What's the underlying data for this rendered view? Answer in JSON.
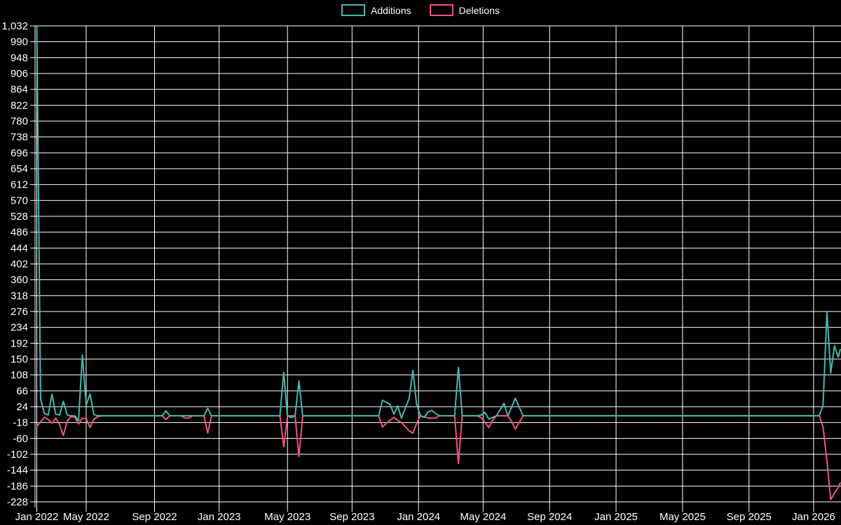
{
  "legend": [
    {
      "label": "Additions",
      "color": "#44b9ae"
    },
    {
      "label": "Deletions",
      "color": "#f2547c"
    }
  ],
  "colors": {
    "background": "#000000",
    "grid": "#ffffff",
    "text": "#ffffff",
    "additions": "#44b9ae",
    "deletions": "#f2547c"
  },
  "chart_data": {
    "type": "line",
    "title": "",
    "xlabel": "",
    "ylabel": "",
    "legend_position": "top-center",
    "grid": true,
    "x_axis": {
      "unit": "weeks",
      "ticks": [
        {
          "label": "Jan 2022",
          "week": 0
        },
        {
          "label": "May 2022",
          "week": 13
        },
        {
          "label": "Sep 2022",
          "week": 31
        },
        {
          "label": "Jan 2023",
          "week": 48
        },
        {
          "label": "May 2023",
          "week": 66
        },
        {
          "label": "Sep 2023",
          "week": 83
        },
        {
          "label": "Jan 2024",
          "week": 100.5
        },
        {
          "label": "May 2024",
          "week": 117.5
        },
        {
          "label": "Sep 2024",
          "week": 135
        },
        {
          "label": "Jan 2025",
          "week": 152.5
        },
        {
          "label": "May 2025",
          "week": 170
        },
        {
          "label": "Sep 2025",
          "week": 187.5
        },
        {
          "label": "Jan 2026",
          "week": 204.5
        }
      ],
      "weeks_total": 211.5
    },
    "y_axis": {
      "min": -228,
      "max": 1032,
      "tick_step": 42,
      "ticks": [
        1032,
        990,
        948,
        906,
        864,
        822,
        780,
        738,
        696,
        654,
        612,
        570,
        528,
        486,
        444,
        402,
        360,
        318,
        276,
        234,
        192,
        150,
        108,
        66,
        24,
        -18,
        -60,
        -102,
        -144,
        -186,
        -228
      ]
    },
    "baseline_value": 0,
    "series": [
      {
        "name": "Additions",
        "color": "#44b9ae",
        "points": [
          [
            0,
            1032
          ],
          [
            1,
            45
          ],
          [
            2,
            6
          ],
          [
            3,
            2
          ],
          [
            4,
            57
          ],
          [
            5,
            4
          ],
          [
            6,
            2
          ],
          [
            7,
            38
          ],
          [
            8,
            2
          ],
          [
            9,
            0
          ],
          [
            10,
            0
          ],
          [
            11,
            -13
          ],
          [
            12,
            161
          ],
          [
            13,
            28
          ],
          [
            14,
            58
          ],
          [
            15,
            4
          ],
          [
            16,
            0
          ],
          [
            33,
            0
          ],
          [
            34,
            13
          ],
          [
            35,
            0
          ],
          [
            44,
            0
          ],
          [
            45,
            20
          ],
          [
            46,
            0
          ],
          [
            64,
            0
          ],
          [
            65,
            115
          ],
          [
            66,
            0
          ],
          [
            67,
            -5
          ],
          [
            68,
            0
          ],
          [
            69,
            92
          ],
          [
            70,
            0
          ],
          [
            90,
            0
          ],
          [
            91,
            41
          ],
          [
            93,
            30
          ],
          [
            94,
            4
          ],
          [
            95,
            26
          ],
          [
            96,
            -6
          ],
          [
            97,
            20
          ],
          [
            98,
            45
          ],
          [
            99,
            120
          ],
          [
            100,
            30
          ],
          [
            101,
            0
          ],
          [
            102,
            -4
          ],
          [
            103,
            10
          ],
          [
            104,
            14
          ],
          [
            105,
            6
          ],
          [
            106,
            0
          ],
          [
            110,
            0
          ],
          [
            111,
            128
          ],
          [
            112,
            0
          ],
          [
            116,
            0
          ],
          [
            117,
            2
          ],
          [
            118,
            9
          ],
          [
            119,
            -9
          ],
          [
            121,
            0
          ],
          [
            123,
            33
          ],
          [
            124,
            0
          ],
          [
            126,
            46
          ],
          [
            128,
            0
          ],
          [
            206,
            0
          ],
          [
            207,
            28
          ],
          [
            208,
            276
          ],
          [
            209,
            113
          ],
          [
            210,
            185
          ],
          [
            211,
            155
          ],
          [
            211.5,
            175
          ]
        ]
      },
      {
        "name": "Deletions",
        "color": "#f2547c",
        "points": [
          [
            0,
            -28
          ],
          [
            1,
            -16
          ],
          [
            2,
            -4
          ],
          [
            3,
            -10
          ],
          [
            4,
            -20
          ],
          [
            5,
            -6
          ],
          [
            6,
            -24
          ],
          [
            7,
            -52
          ],
          [
            8,
            -14
          ],
          [
            9,
            -2
          ],
          [
            10,
            -4
          ],
          [
            11,
            -22
          ],
          [
            12,
            -6
          ],
          [
            13,
            -8
          ],
          [
            14,
            -31
          ],
          [
            15,
            -10
          ],
          [
            16,
            -2
          ],
          [
            17,
            0
          ],
          [
            33,
            0
          ],
          [
            34,
            -10
          ],
          [
            35,
            0
          ],
          [
            38,
            0
          ],
          [
            39,
            -6
          ],
          [
            40,
            -6
          ],
          [
            41,
            0
          ],
          [
            44,
            0
          ],
          [
            45,
            -46
          ],
          [
            46,
            0
          ],
          [
            64,
            0
          ],
          [
            65,
            -82
          ],
          [
            66,
            0
          ],
          [
            68,
            0
          ],
          [
            69,
            -108
          ],
          [
            70,
            0
          ],
          [
            90,
            0
          ],
          [
            91,
            -30
          ],
          [
            92,
            -20
          ],
          [
            93,
            -12
          ],
          [
            94,
            -4
          ],
          [
            95,
            -12
          ],
          [
            96,
            -18
          ],
          [
            98,
            -40
          ],
          [
            99,
            -46
          ],
          [
            100,
            -20
          ],
          [
            101,
            0
          ],
          [
            103,
            -6
          ],
          [
            105,
            -6
          ],
          [
            106,
            0
          ],
          [
            110,
            0
          ],
          [
            111,
            -126
          ],
          [
            112,
            0
          ],
          [
            116,
            0
          ],
          [
            117,
            -5
          ],
          [
            118,
            -18
          ],
          [
            119,
            -31
          ],
          [
            120,
            -12
          ],
          [
            121,
            0
          ],
          [
            124,
            0
          ],
          [
            125,
            -15
          ],
          [
            126,
            -35
          ],
          [
            128,
            0
          ],
          [
            206,
            0
          ],
          [
            207,
            -30
          ],
          [
            208,
            -120
          ],
          [
            209,
            -222
          ],
          [
            210,
            -205
          ],
          [
            211,
            -190
          ],
          [
            211.5,
            -178
          ]
        ]
      }
    ]
  }
}
